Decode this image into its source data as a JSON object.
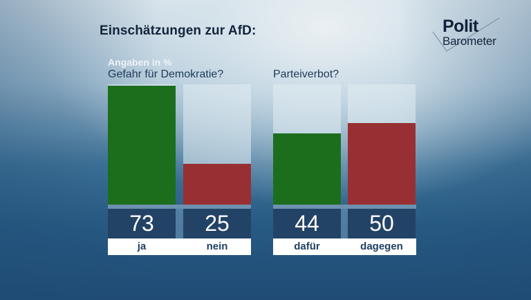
{
  "title": "Einschätzungen zur AfD:",
  "logo": {
    "line1": "Polit",
    "line2": "Barometer"
  },
  "unit_note": "Angaben in %",
  "colors": {
    "yes": "#1c6e1c",
    "no": "#983033",
    "value_box": "#234366"
  },
  "chart_data": [
    {
      "type": "bar",
      "title": "Gefahr für Demokratie?",
      "categories": [
        "ja",
        "nein"
      ],
      "values": [
        73,
        25
      ],
      "ylabel": "Angaben in %",
      "ylim": [
        0,
        74
      ]
    },
    {
      "type": "bar",
      "title": "Parteiverbot?",
      "categories": [
        "dafür",
        "dagegen"
      ],
      "values": [
        44,
        50
      ],
      "ylabel": "Angaben in %",
      "ylim": [
        0,
        74
      ]
    }
  ]
}
